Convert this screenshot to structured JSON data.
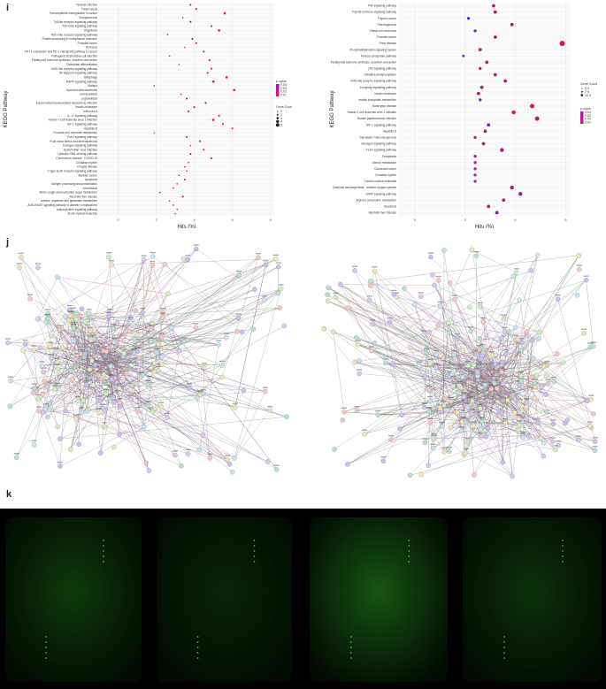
{
  "labels": {
    "i": "i",
    "j": "j",
    "k": "k"
  },
  "colors": {
    "low": "#3333dd",
    "high": "#ee1144",
    "grid": "#ebebeb",
    "bg": "#ffffff"
  },
  "chart_data": [
    {
      "type": "scatter",
      "xlabel": "Hits (%)",
      "ylabel": "KEGG Pathway",
      "xlim": [
        -1,
        8.2
      ],
      "xticks": [
        0,
        2,
        4,
        6,
        8
      ],
      "legend_size_title": "Gene Counts",
      "legend_size_items": [
        "1",
        "2",
        "3",
        "4",
        "5"
      ],
      "legend_color_title": "p-value",
      "legend_color_items": [
        "0.04",
        "0.03",
        "0.02",
        "0.01"
      ],
      "categories": [
        "Yersinia infection",
        "Tuberculosis",
        "Transcriptional misregulation in cancer",
        "Toxoplasmosis",
        "Toll-like receptor signaling pathway",
        "TGF-beta signaling pathway",
        "Shigellosis",
        "RIG-I-like receptor signaling pathway",
        "Protein processing in endoplasmic reticulum",
        "Prostate cancer",
        "Pertussis",
        "PD-L1 expression and PD-1 checkpoint pathway in cancer",
        "Pathogenic Escherichia coli infection",
        "Parathyroid hormone synthesis, secretion and action",
        "Osteoclast differentiation",
        "NOD-like receptor signaling pathway",
        "NF-kappa B signaling pathway",
        "Mitophagy",
        "MAPK signaling pathway",
        "Malaria",
        "Lipid and atherosclerosis",
        "Leishmaniasis",
        "Legionellosis",
        "Kaposi sarcoma-associated herpesvirus infection",
        "Insulin resistance",
        "Influenza A",
        "IL-17 signaling pathway",
        "Human T-cell leukemia virus 1 infection",
        "HIF-1 signaling pathway",
        "Hepatitis B",
        "Fructose and mannose metabolism",
        "FoxO signaling pathway",
        "Fluid shear stress and atherosclerosis",
        "Estrogen signaling pathway",
        "Epstein-Barr virus infection",
        "Cytosolic DNA-sensing pathway",
        "Coronavirus disease - COVID-19",
        "Circadian rhythm",
        "Chagas disease",
        "C-type lectin receptor signaling pathway",
        "Bladder cancer",
        "Apoptosis",
        "Antigen processing and presentation",
        "Amoebiasis",
        "Amino sugar and nucleotide sugar metabolism",
        "Alcoholic liver disease",
        "Alanine, aspartate and glutamate metabolism",
        "AGE-RAGE signaling pathway in diabetic complications",
        "Adipocytokine signaling pathway",
        "Acute myeloid leukemia"
      ],
      "x": [
        3.8,
        4.1,
        5.6,
        3.4,
        3.8,
        4.9,
        5.3,
        2.6,
        3.9,
        4.1,
        3.5,
        4.5,
        2.7,
        4.8,
        3.2,
        4.9,
        4.7,
        5.7,
        5.0,
        1.9,
        6.1,
        3.3,
        3.6,
        4.6,
        4.0,
        3.7,
        5.3,
        5.0,
        5.5,
        6.0,
        1.9,
        3.6,
        4.3,
        3.8,
        4.5,
        3.8,
        4.9,
        3.7,
        3.5,
        3.6,
        3.2,
        3.5,
        3.1,
        2.9,
        2.2,
        3.4,
        2.7,
        2.9,
        3.1,
        3.0
      ],
      "p": [
        0.02,
        0.02,
        0.01,
        0.04,
        0.02,
        0.02,
        0.01,
        0.03,
        0.03,
        0.02,
        0.02,
        0.03,
        0.02,
        0.02,
        0.02,
        0.01,
        0.02,
        0.01,
        0.02,
        0.03,
        0.01,
        0.02,
        0.02,
        0.03,
        0.02,
        0.02,
        0.01,
        0.01,
        0.01,
        0.01,
        0.03,
        0.02,
        0.02,
        0.02,
        0.01,
        0.02,
        0.02,
        0.02,
        0.02,
        0.02,
        0.03,
        0.02,
        0.02,
        0.02,
        0.04,
        0.02,
        0.02,
        0.02,
        0.02,
        0.02
      ],
      "size": [
        2,
        2,
        3,
        1,
        2,
        2,
        3,
        1,
        2,
        2,
        1,
        2,
        1,
        2,
        1,
        2,
        2,
        3,
        3,
        1,
        3,
        1,
        2,
        2,
        2,
        2,
        2,
        3,
        2,
        2,
        1,
        2,
        2,
        1,
        2,
        2,
        2,
        1,
        1,
        1,
        1,
        2,
        1,
        1,
        1,
        2,
        1,
        1,
        1,
        1
      ]
    },
    {
      "type": "scatter",
      "xlabel": "Hits (%)",
      "ylabel": "KEGG Pathway",
      "xlim": [
        -1,
        9.3
      ],
      "xticks": [
        0,
        3,
        6,
        9
      ],
      "legend_size_title": "Gene Counts",
      "legend_size_items": [
        "5.0",
        "7.5",
        "10.0"
      ],
      "legend_color_title": "p-value",
      "legend_color_items": [
        "0.04",
        "0.03",
        "0.02",
        "0.01"
      ],
      "categories": [
        "TNF signaling pathway",
        "Thyroid hormone signaling pathway",
        "Thyroid cancer",
        "Thermogenesis",
        "Renal cell carcinoma",
        "Prostate cancer",
        "Prion disease",
        "Phosphatidylinositol signaling system",
        "Pentose phosphate pathway",
        "Parathyroid hormone synthesis, secretion and action",
        "p53 signaling pathway",
        "Oxidative phosphorylation",
        "NOD-like receptor signaling pathway",
        "Longevity regulating pathway",
        "Insulin resistance",
        "Inositol phosphate metabolism",
        "Huntington disease",
        "Human T-cell leukemia virus 1 infection",
        "Human papillomavirus infection",
        "HIF-1 signaling pathway",
        "Hepatitis B",
        "Glycolysis / Gluconeogenesis",
        "Glucagon signaling pathway",
        "FoxO signaling pathway",
        "Ferroptosis",
        "Carbon metabolism",
        "Colorectal cancer",
        "Circadian rhythm",
        "Chronic myeloid leukemia",
        "Chemical carcinogenesis - reactive oxygen species",
        "cAMP signaling pathway",
        "Arginine and proline metabolism",
        "Apoptosis",
        "Alcoholic liver disease"
      ],
      "x": [
        4.7,
        4.8,
        3.2,
        5.8,
        3.6,
        4.8,
        8.8,
        3.9,
        2.9,
        4.3,
        3.9,
        4.8,
        5.4,
        4.0,
        3.8,
        3.9,
        7.0,
        5.9,
        7.3,
        4.4,
        4.2,
        3.6,
        4.1,
        5.2,
        3.6,
        3.6,
        3.6,
        3.6,
        3.6,
        5.8,
        6.3,
        5.3,
        4.4,
        4.9
      ],
      "p": [
        0.02,
        0.02,
        0.04,
        0.02,
        0.03,
        0.02,
        0.01,
        0.02,
        0.04,
        0.02,
        0.02,
        0.02,
        0.02,
        0.02,
        0.02,
        0.03,
        0.01,
        0.01,
        0.02,
        0.03,
        0.02,
        0.02,
        0.02,
        0.02,
        0.02,
        0.02,
        0.02,
        0.02,
        0.02,
        0.02,
        0.03,
        0.02,
        0.02,
        0.03
      ],
      "size": [
        5,
        5,
        4,
        5,
        4,
        5,
        9,
        5,
        3,
        5,
        4,
        5,
        5,
        5,
        5,
        4,
        7,
        6,
        7,
        5,
        5,
        4,
        5,
        6,
        4,
        4,
        4,
        4,
        4,
        6,
        6,
        5,
        5,
        5
      ]
    }
  ],
  "arrays": [
    {
      "x": 6,
      "w": 154,
      "brightness": "#0d3a0a"
    },
    {
      "x": 178,
      "w": 152,
      "brightness": "#072606"
    },
    {
      "x": 350,
      "w": 156,
      "brightness": "#155512"
    },
    {
      "x": 523,
      "w": 157,
      "brightness": "#0b3209"
    }
  ]
}
